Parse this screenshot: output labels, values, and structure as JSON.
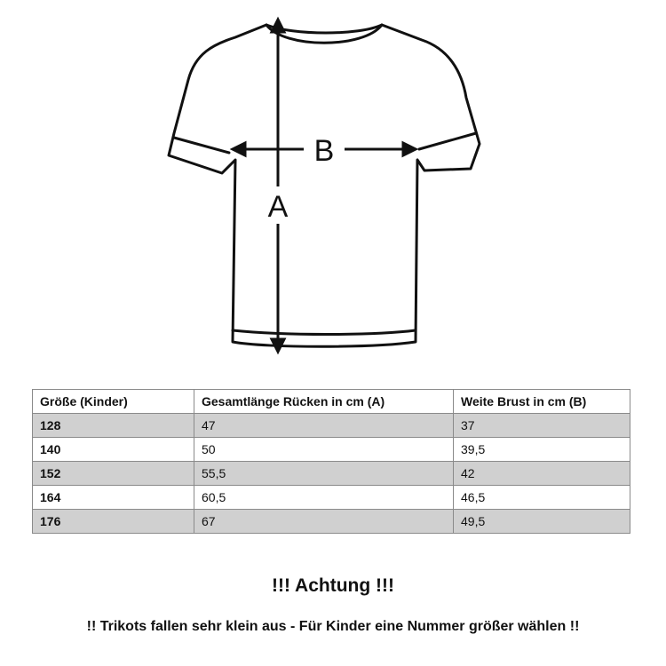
{
  "diagram": {
    "label_a": "A",
    "label_b": "B"
  },
  "table": {
    "headers": [
      "Größe (Kinder)",
      "Gesamtlänge Rücken in cm (A)",
      "Weite Brust in cm (B)"
    ],
    "rows": [
      [
        "128",
        "47",
        "37"
      ],
      [
        "140",
        "50",
        "39,5"
      ],
      [
        "152",
        "55,5",
        "42"
      ],
      [
        "164",
        "60,5",
        "46,5"
      ],
      [
        "176",
        "67",
        "49,5"
      ]
    ]
  },
  "notice": {
    "title": "!!! Achtung !!!",
    "text": "!! Trikots fallen sehr klein aus - Für Kinder eine Nummer größer wählen !!"
  }
}
